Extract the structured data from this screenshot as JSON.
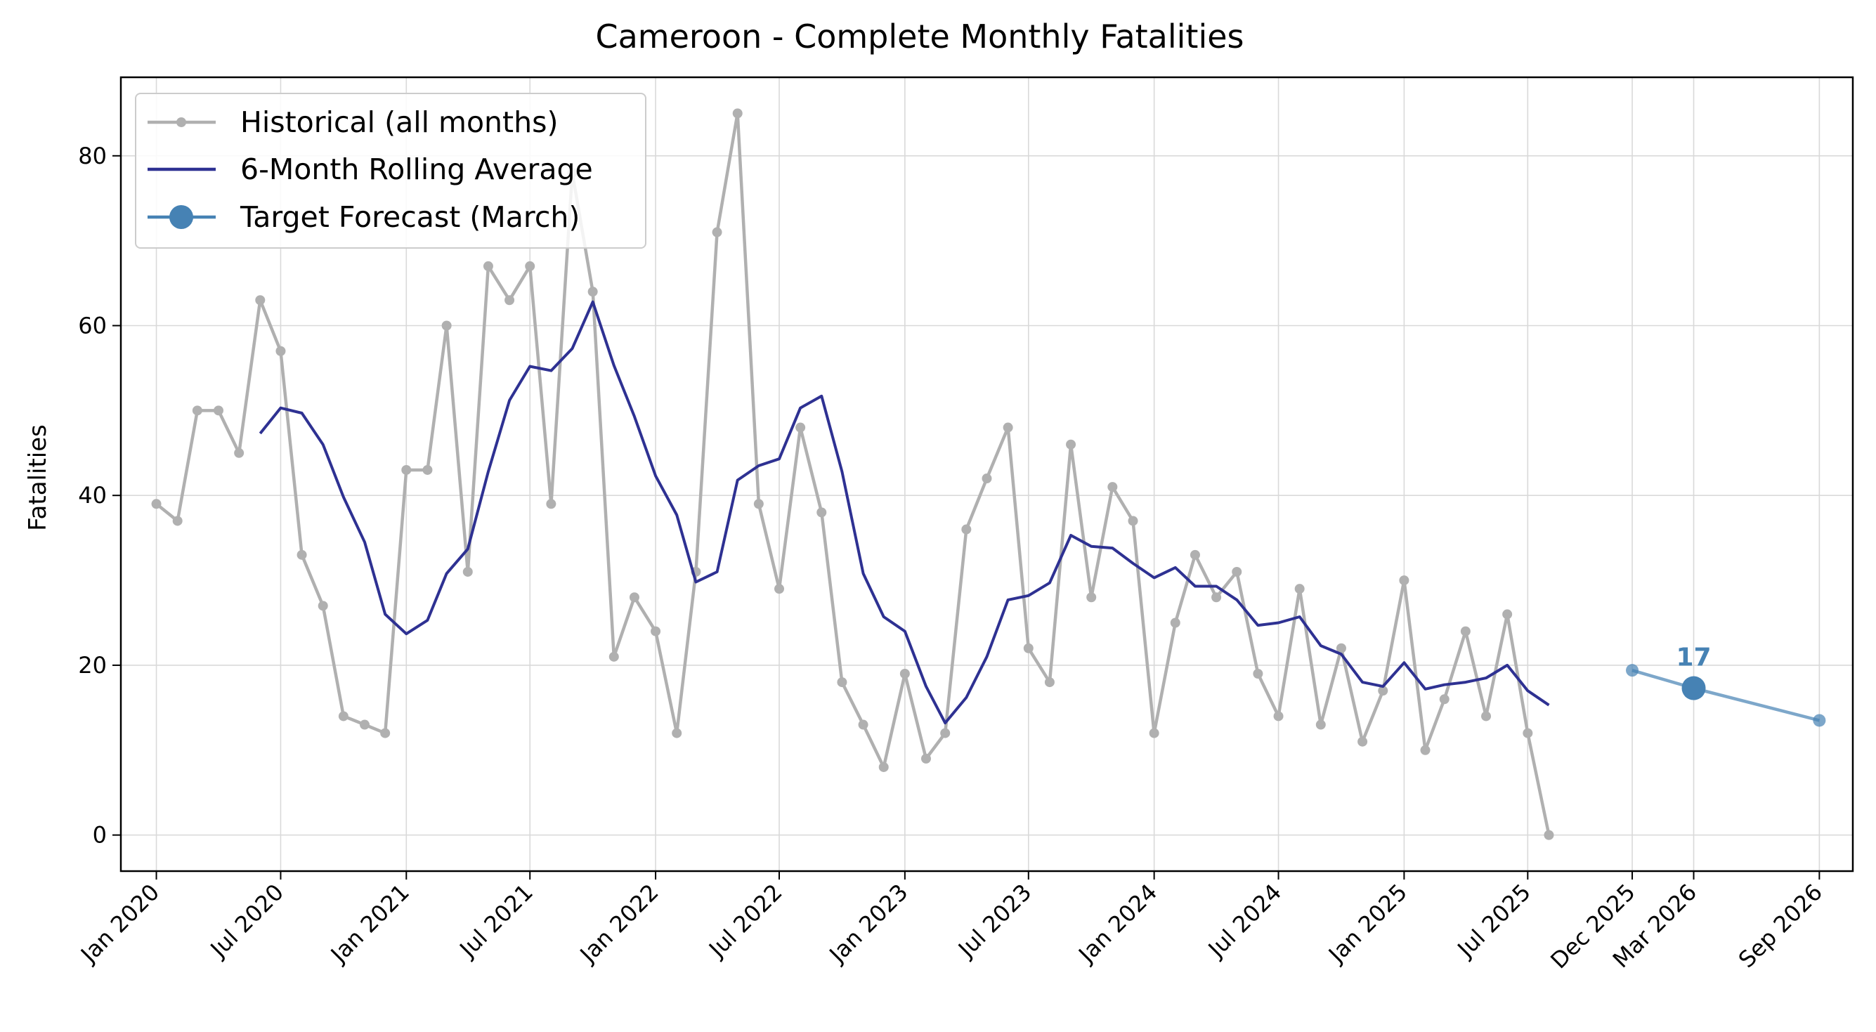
{
  "chart_data": {
    "type": "line",
    "title": "Cameroon - Complete Monthly Fatalities",
    "xlabel": "",
    "ylabel": "Fatalities",
    "ylim": [
      -4.25,
      89.25
    ],
    "xlim": [
      "2019-11-10",
      "2026-10-20"
    ],
    "grid": true,
    "legend_position": "top-left",
    "y_ticks": [
      0,
      20,
      40,
      60,
      80
    ],
    "x_ticks": [
      {
        "date": "2020-01-01",
        "label": "Jan 2020"
      },
      {
        "date": "2020-07-01",
        "label": "Jul 2020"
      },
      {
        "date": "2021-01-01",
        "label": "Jan 2021"
      },
      {
        "date": "2021-07-01",
        "label": "Jul 2021"
      },
      {
        "date": "2022-01-01",
        "label": "Jan 2022"
      },
      {
        "date": "2022-07-01",
        "label": "Jul 2022"
      },
      {
        "date": "2023-01-01",
        "label": "Jan 2023"
      },
      {
        "date": "2023-07-01",
        "label": "Jul 2023"
      },
      {
        "date": "2024-01-01",
        "label": "Jan 2024"
      },
      {
        "date": "2024-07-01",
        "label": "Jul 2024"
      },
      {
        "date": "2025-01-01",
        "label": "Jan 2025"
      },
      {
        "date": "2025-07-01",
        "label": "Jul 2025"
      },
      {
        "date": "2025-12-01",
        "label": "Dec 2025"
      },
      {
        "date": "2026-03-01",
        "label": "Mar 2026"
      },
      {
        "date": "2026-09-01",
        "label": "Sep 2026"
      }
    ],
    "series": [
      {
        "name": "Historical (all months)",
        "color": "#b0b0b0",
        "marker": "small-dot",
        "x": [
          "2020-01-01",
          "2020-02-01",
          "2020-03-01",
          "2020-04-01",
          "2020-05-01",
          "2020-06-01",
          "2020-07-01",
          "2020-08-01",
          "2020-09-01",
          "2020-10-01",
          "2020-11-01",
          "2020-12-01",
          "2021-01-01",
          "2021-02-01",
          "2021-03-01",
          "2021-04-01",
          "2021-05-01",
          "2021-06-01",
          "2021-07-01",
          "2021-08-01",
          "2021-09-01",
          "2021-10-01",
          "2021-11-01",
          "2021-12-01",
          "2022-01-01",
          "2022-02-01",
          "2022-03-01",
          "2022-04-01",
          "2022-05-01",
          "2022-06-01",
          "2022-07-01",
          "2022-08-01",
          "2022-09-01",
          "2022-10-01",
          "2022-11-01",
          "2022-12-01",
          "2023-01-01",
          "2023-02-01",
          "2023-03-01",
          "2023-04-01",
          "2023-05-01",
          "2023-06-01",
          "2023-07-01",
          "2023-08-01",
          "2023-09-01",
          "2023-10-01",
          "2023-11-01",
          "2023-12-01",
          "2024-01-01",
          "2024-02-01",
          "2024-03-01",
          "2024-04-01",
          "2024-05-01",
          "2024-06-01",
          "2024-07-01",
          "2024-08-01",
          "2024-09-01",
          "2024-10-01",
          "2024-11-01",
          "2024-12-01",
          "2025-01-01",
          "2025-02-01",
          "2025-03-01",
          "2025-04-01",
          "2025-05-01",
          "2025-06-01",
          "2025-07-01",
          "2025-08-01"
        ],
        "values": [
          39,
          37,
          50,
          50,
          45,
          63,
          57,
          33,
          27,
          14,
          13,
          12,
          43,
          43,
          60,
          31,
          67,
          63,
          67,
          39,
          78,
          64,
          21,
          28,
          24,
          12,
          31,
          71,
          85,
          39,
          29,
          48,
          38,
          18,
          13,
          8,
          19,
          9,
          12,
          36,
          42,
          48,
          22,
          18,
          46,
          28,
          41,
          37,
          12,
          25,
          33,
          28,
          31,
          19,
          14,
          29,
          13,
          22,
          11,
          17,
          30,
          10,
          16,
          24,
          14,
          26,
          12,
          0
        ]
      },
      {
        "name": "6-Month Rolling Average",
        "color": "#2e3192",
        "marker": "none",
        "x": [
          "2020-06-01",
          "2020-07-01",
          "2020-08-01",
          "2020-09-01",
          "2020-10-01",
          "2020-11-01",
          "2020-12-01",
          "2021-01-01",
          "2021-02-01",
          "2021-03-01",
          "2021-04-01",
          "2021-05-01",
          "2021-06-01",
          "2021-07-01",
          "2021-08-01",
          "2021-09-01",
          "2021-10-01",
          "2021-11-01",
          "2021-12-01",
          "2022-01-01",
          "2022-02-01",
          "2022-03-01",
          "2022-04-01",
          "2022-05-01",
          "2022-06-01",
          "2022-07-01",
          "2022-08-01",
          "2022-09-01",
          "2022-10-01",
          "2022-11-01",
          "2022-12-01",
          "2023-01-01",
          "2023-02-01",
          "2023-03-01",
          "2023-04-01",
          "2023-05-01",
          "2023-06-01",
          "2023-07-01",
          "2023-08-01",
          "2023-09-01",
          "2023-10-01",
          "2023-11-01",
          "2023-12-01",
          "2024-01-01",
          "2024-02-01",
          "2024-03-01",
          "2024-04-01",
          "2024-05-01",
          "2024-06-01",
          "2024-07-01",
          "2024-08-01",
          "2024-09-01",
          "2024-10-01",
          "2024-11-01",
          "2024-12-01",
          "2025-01-01",
          "2025-02-01",
          "2025-03-01",
          "2025-04-01",
          "2025-05-01",
          "2025-06-01",
          "2025-07-01",
          "2025-08-01"
        ],
        "values": [
          47.3,
          50.3,
          49.7,
          46.0,
          39.8,
          34.5,
          26.0,
          23.7,
          25.3,
          30.8,
          33.7,
          42.8,
          51.2,
          55.2,
          54.7,
          57.3,
          62.8,
          55.3,
          49.3,
          42.3,
          37.7,
          29.8,
          31.0,
          41.8,
          43.5,
          44.3,
          50.3,
          51.7,
          42.8,
          30.8,
          25.7,
          24.0,
          17.5,
          13.2,
          16.2,
          21.0,
          27.7,
          28.2,
          29.7,
          35.3,
          34.0,
          33.8,
          32.0,
          30.3,
          31.5,
          29.3,
          29.3,
          27.7,
          24.7,
          25.0,
          25.7,
          22.3,
          21.3,
          18.0,
          17.5,
          20.3,
          17.2,
          17.7,
          18.0,
          18.5,
          20.0,
          17.0,
          15.3
        ]
      },
      {
        "name": "Target Forecast (March)",
        "color": "#4682b4",
        "marker": "large-dot",
        "x": [
          "2025-12-01",
          "2026-03-01",
          "2026-09-01"
        ],
        "values": [
          19.4,
          17.3,
          13.5
        ]
      }
    ],
    "annotations": [
      {
        "text": "17",
        "x": "2026-03-01",
        "y": 17.3
      }
    ]
  }
}
